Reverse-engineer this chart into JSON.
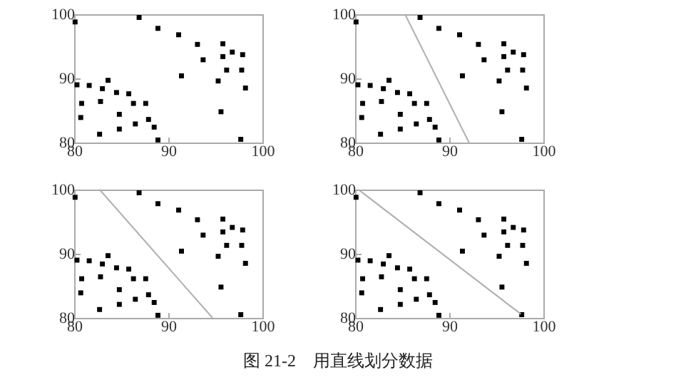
{
  "chart_data": [
    {
      "type": "scatter",
      "xlim": [
        80,
        100
      ],
      "ylim": [
        80,
        100
      ],
      "xticks": [
        80,
        90,
        100
      ],
      "yticks": [
        80,
        90,
        100
      ],
      "marker": "square",
      "series": [
        {
          "color": "#000000",
          "x": [
            80.1,
            86.9,
            88.9,
            91.1,
            93.1,
            93.7,
            91.4,
            95.8,
            95.8,
            96.8,
            97.9,
            96.2,
            97.8,
            95.3,
            98.2,
            95.6,
            97.7,
            80.3,
            81.6,
            83.6,
            83.0,
            84.5,
            85.8,
            80.8,
            82.8,
            84.8,
            86.3,
            87.6,
            80.7,
            87.9,
            86.5,
            84.8,
            88.5,
            82.7,
            88.9
          ],
          "values": [
            98.8,
            99.5,
            97.8,
            96.8,
            95.3,
            92.9,
            90.4,
            95.4,
            93.4,
            94.1,
            93.7,
            91.3,
            91.3,
            89.6,
            88.5,
            84.8,
            80.5,
            89.0,
            88.9,
            89.7,
            88.4,
            87.8,
            87.6,
            86.1,
            86.4,
            84.4,
            86.1,
            86.1,
            83.9,
            83.6,
            82.9,
            82.1,
            82.4,
            81.3,
            80.4
          ]
        }
      ]
    },
    {
      "type": "scatter",
      "xlim": [
        80,
        100
      ],
      "ylim": [
        80,
        100
      ],
      "xticks": [
        80,
        90,
        100
      ],
      "yticks": [
        80,
        90,
        100
      ],
      "marker": "square",
      "series": [
        {
          "color": "#000000",
          "x": [
            80.1,
            86.9,
            88.9,
            91.1,
            93.1,
            93.7,
            91.4,
            95.8,
            95.8,
            96.8,
            97.9,
            96.2,
            97.8,
            95.3,
            98.2,
            95.6,
            97.7,
            80.3,
            81.6,
            83.6,
            83.0,
            84.5,
            85.8,
            80.8,
            82.8,
            84.8,
            86.3,
            87.6,
            80.7,
            87.9,
            86.5,
            84.8,
            88.5,
            82.7,
            88.9
          ],
          "values": [
            98.8,
            99.5,
            97.8,
            96.8,
            95.3,
            92.9,
            90.4,
            95.4,
            93.4,
            94.1,
            93.7,
            91.3,
            91.3,
            89.6,
            88.5,
            84.8,
            80.5,
            89.0,
            88.9,
            89.7,
            88.4,
            87.8,
            87.6,
            86.1,
            86.4,
            84.4,
            86.1,
            86.1,
            83.9,
            83.6,
            82.9,
            82.1,
            82.4,
            81.3,
            80.4
          ]
        },
        {
          "type": "line",
          "marker": "none",
          "color": "#b0b0b0",
          "x": [
            85.3,
            92.1
          ],
          "values": [
            100,
            80
          ]
        }
      ]
    },
    {
      "type": "scatter",
      "xlim": [
        80,
        100
      ],
      "ylim": [
        80,
        100
      ],
      "xticks": [
        80,
        90,
        100
      ],
      "yticks": [
        80,
        90,
        100
      ],
      "marker": "square",
      "series": [
        {
          "color": "#000000",
          "x": [
            80.1,
            86.9,
            88.9,
            91.1,
            93.1,
            93.7,
            91.4,
            95.8,
            95.8,
            96.8,
            97.9,
            96.2,
            97.8,
            95.3,
            98.2,
            95.6,
            97.7,
            80.3,
            81.6,
            83.6,
            83.0,
            84.5,
            85.8,
            80.8,
            82.8,
            84.8,
            86.3,
            87.6,
            80.7,
            87.9,
            86.5,
            84.8,
            88.5,
            82.7,
            88.9
          ],
          "values": [
            98.8,
            99.5,
            97.8,
            96.8,
            95.3,
            92.9,
            90.4,
            95.4,
            93.4,
            94.1,
            93.7,
            91.3,
            91.3,
            89.6,
            88.5,
            84.8,
            80.5,
            89.0,
            88.9,
            89.7,
            88.4,
            87.8,
            87.6,
            86.1,
            86.4,
            84.4,
            86.1,
            86.1,
            83.9,
            83.6,
            82.9,
            82.1,
            82.4,
            81.3,
            80.4
          ]
        },
        {
          "type": "line",
          "marker": "none",
          "color": "#b0b0b0",
          "x": [
            82.7,
            94.7
          ],
          "values": [
            100,
            80
          ]
        }
      ]
    },
    {
      "type": "scatter",
      "xlim": [
        80,
        100
      ],
      "ylim": [
        80,
        100
      ],
      "xticks": [
        80,
        90,
        100
      ],
      "yticks": [
        80,
        90,
        100
      ],
      "marker": "square",
      "annotations": [
        "图 21-2    用直线划分数据"
      ],
      "series": [
        {
          "color": "#000000",
          "x": [
            80.1,
            86.9,
            88.9,
            91.1,
            93.1,
            93.7,
            91.4,
            95.8,
            95.8,
            96.8,
            97.9,
            96.2,
            97.8,
            95.3,
            98.2,
            95.6,
            97.7,
            80.3,
            81.6,
            83.6,
            83.0,
            84.5,
            85.8,
            80.8,
            82.8,
            84.8,
            86.3,
            87.6,
            80.7,
            87.9,
            86.5,
            84.8,
            88.5,
            82.7,
            88.9
          ],
          "values": [
            98.8,
            99.5,
            97.8,
            96.8,
            95.3,
            92.9,
            90.4,
            95.4,
            93.4,
            94.1,
            93.7,
            91.3,
            91.3,
            89.6,
            88.5,
            84.8,
            80.5,
            89.0,
            88.9,
            89.7,
            88.4,
            87.8,
            87.6,
            86.1,
            86.4,
            84.4,
            86.1,
            86.1,
            83.9,
            83.6,
            82.9,
            82.1,
            82.4,
            81.3,
            80.4
          ]
        },
        {
          "type": "line",
          "marker": "none",
          "color": "#b0b0b0",
          "x": [
            80.35,
            97.6
          ],
          "values": [
            100,
            80.6
          ]
        }
      ]
    }
  ]
}
